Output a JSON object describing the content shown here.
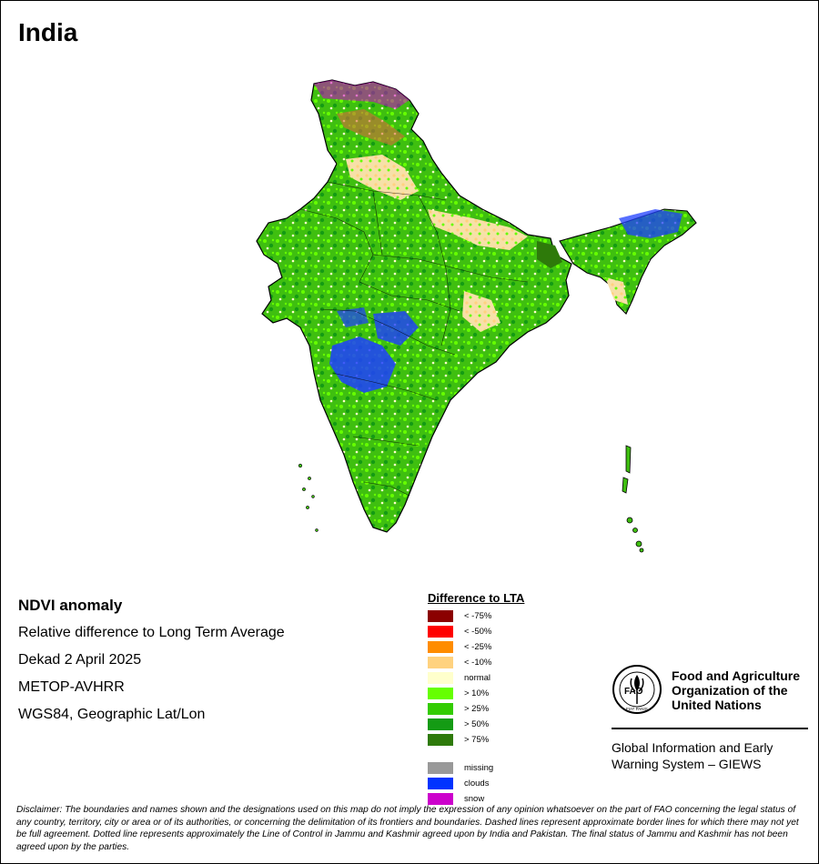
{
  "map": {
    "country": "India"
  },
  "info": {
    "title": "NDVI anomaly",
    "subtitle": "Relative difference to Long Term Average",
    "period": "Dekad 2 April 2025",
    "sensor": "METOP-AVHRR",
    "projection": "WGS84, Geographic Lat/Lon"
  },
  "legend": {
    "title": "Difference to LTA",
    "items": [
      {
        "label": "< -75%",
        "color": "#8b0000"
      },
      {
        "label": "< -50%",
        "color": "#ff0000"
      },
      {
        "label": "< -25%",
        "color": "#ff8c00"
      },
      {
        "label": "< -10%",
        "color": "#ffd27f"
      },
      {
        "label": "normal",
        "color": "#ffffcc"
      },
      {
        "label": "> 10%",
        "color": "#66ff00"
      },
      {
        "label": "> 25%",
        "color": "#33cc00"
      },
      {
        "label": "> 50%",
        "color": "#149b14"
      },
      {
        "label": "> 75%",
        "color": "#2e7a0a"
      }
    ],
    "extra": [
      {
        "label": "missing",
        "color": "#999999"
      },
      {
        "label": "clouds",
        "color": "#0033ff"
      },
      {
        "label": "snow",
        "color": "#cc00cc"
      }
    ]
  },
  "org": {
    "line1": "Food and Agriculture",
    "line2": "Organization of the",
    "line3": "United Nations",
    "logo_text": "FAO",
    "logo_motto": "FIAT PANIS",
    "system1": "Global Information and Early",
    "system2": "Warning System – GIEWS"
  },
  "disclaimer": "Disclaimer: The boundaries and names shown and the designations used on this map do not imply the expression of any opinion whatsoever on the part of FAO concerning the legal status of any country, territory, city or area or of its authorities, or concerning the delimitation of its frontiers and boundaries. Dashed lines represent approximate border lines for which there may not yet be full agreement. Dotted line represents approximately the Line of Control in Jammu and Kashmir agreed upon by India and Pakistan. The final status of Jammu and Kashmir has not been agreed upon by the parties."
}
